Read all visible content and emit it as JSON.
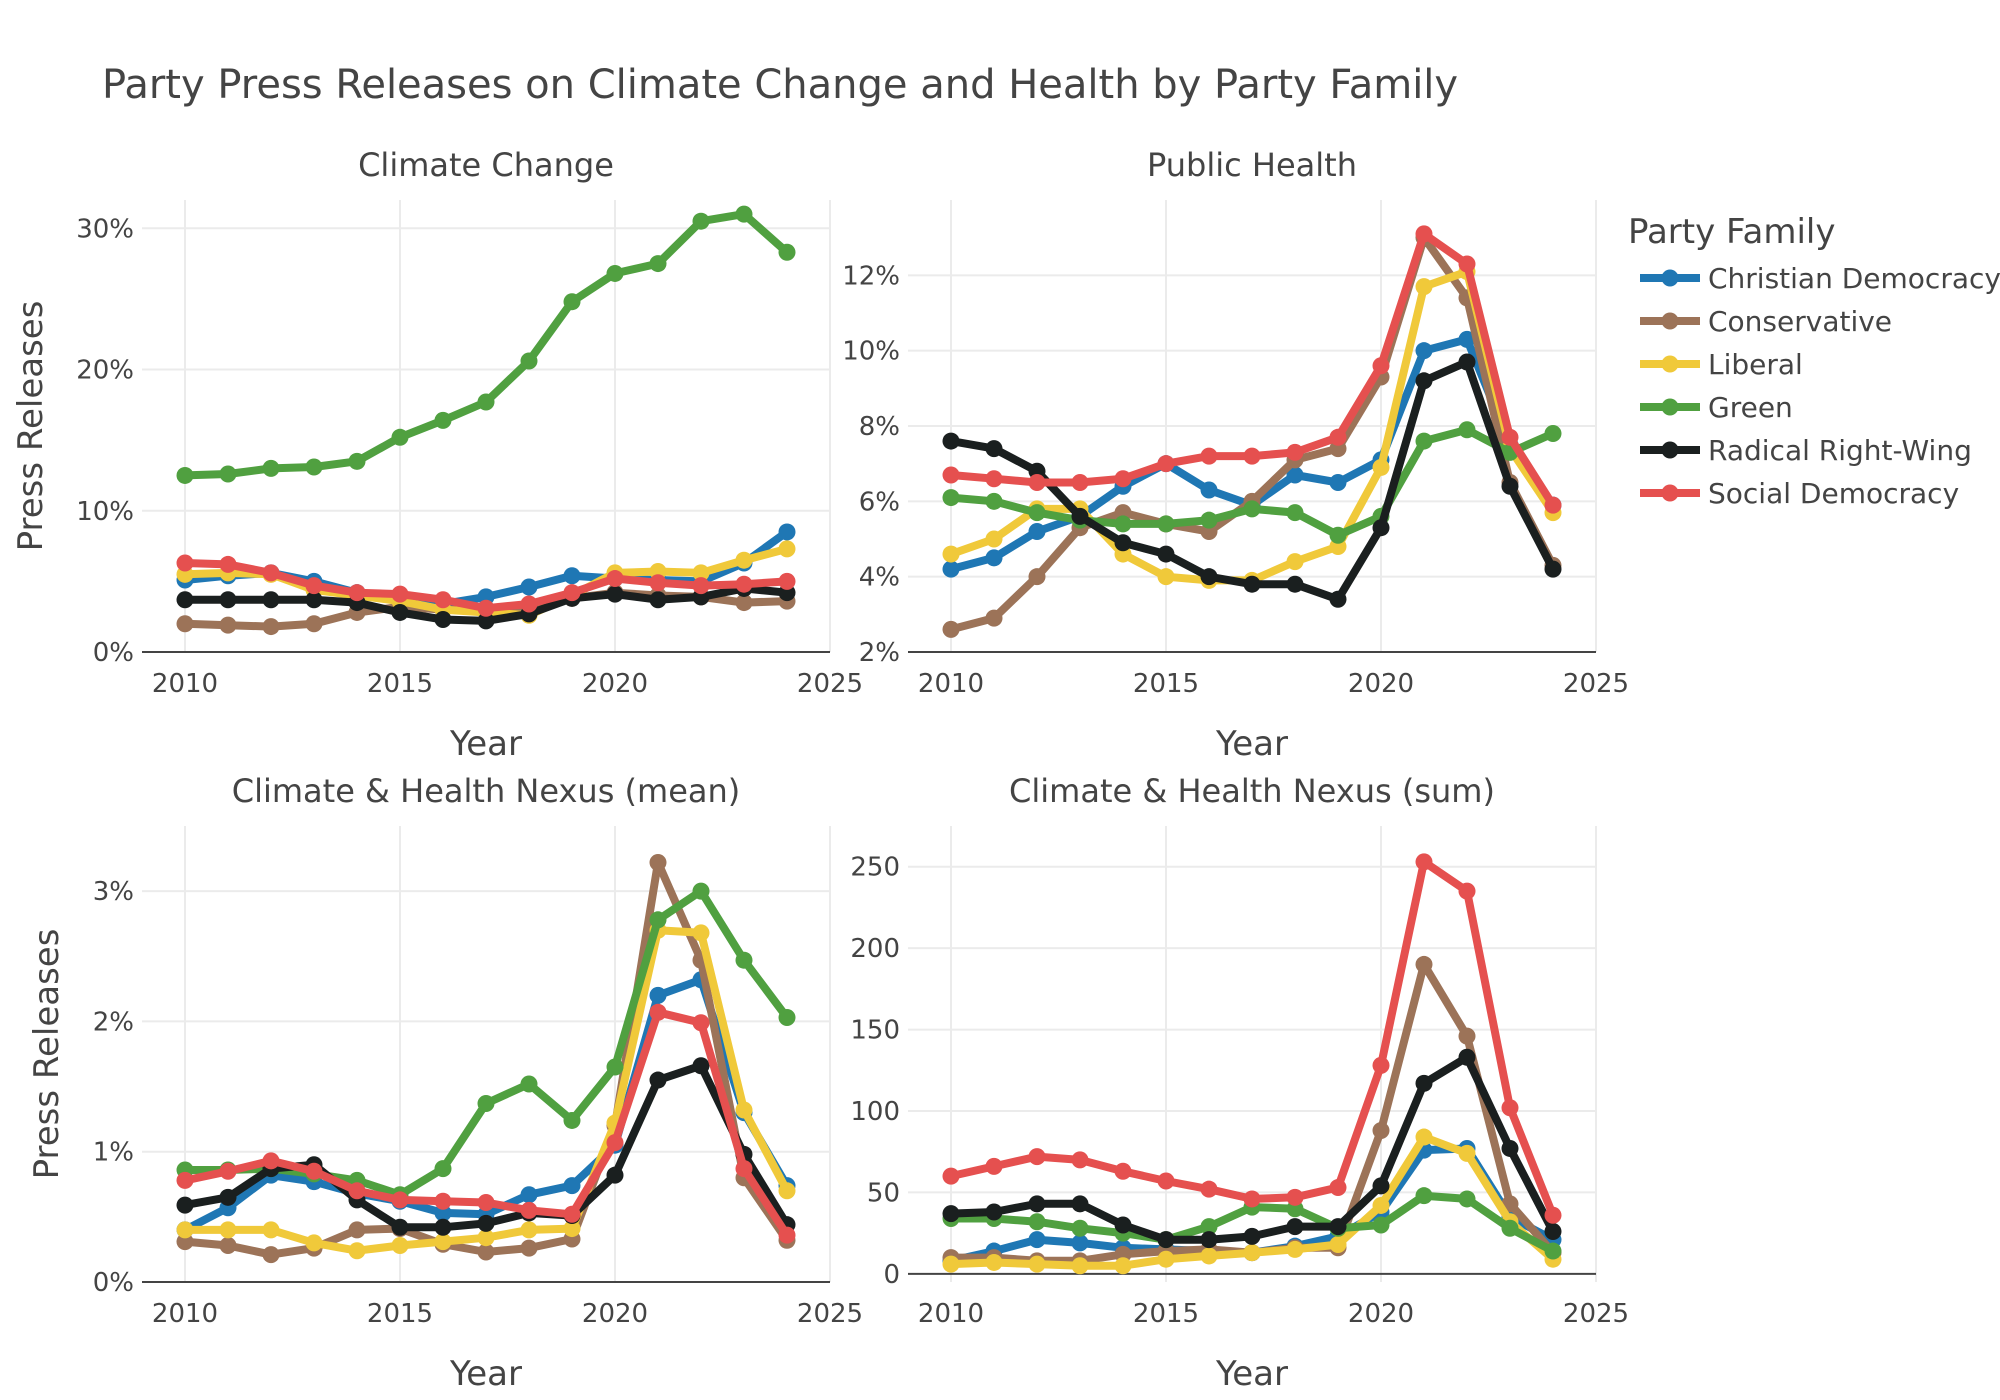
{
  "figure": {
    "title": "Party Press Releases on Climate Change and Health by Party Family",
    "legend_title": "Party Family"
  },
  "style": {
    "background": "#ffffff",
    "grid_color": "#ebebeb",
    "axis_color": "#444444",
    "text_color": "#444444"
  },
  "series_style": [
    {
      "name": "Christian Democracy",
      "color": "#1f77b4"
    },
    {
      "name": "Conservative",
      "color": "#9c7358"
    },
    {
      "name": "Liberal",
      "color": "#f0c93a"
    },
    {
      "name": "Green",
      "color": "#50a040"
    },
    {
      "name": "Radical Right-Wing",
      "color": "#1a1f1f"
    },
    {
      "name": "Social Democracy",
      "color": "#e5504f"
    }
  ],
  "chart_data": [
    {
      "type": "line",
      "title": "Climate Change",
      "xlabel": "Year",
      "ylabel": "Press Releases",
      "xlim": [
        2009,
        2025
      ],
      "ylim": [
        0,
        32
      ],
      "xticks": [
        2010,
        2015,
        2020,
        2025
      ],
      "yticks": [
        0,
        10,
        20,
        30
      ],
      "yticklabels": [
        "0%",
        "10%",
        "20%",
        "30%"
      ],
      "x": [
        2010,
        2011,
        2012,
        2013,
        2014,
        2015,
        2016,
        2017,
        2018,
        2019,
        2020,
        2021,
        2022,
        2023,
        2024
      ],
      "series": [
        {
          "name": "Christian Democracy",
          "values": [
            5.1,
            5.4,
            5.6,
            5.0,
            4.2,
            3.9,
            3.4,
            3.9,
            4.6,
            5.4,
            5.2,
            5.1,
            5.0,
            6.3,
            8.5
          ]
        },
        {
          "name": "Conservative",
          "values": [
            2.0,
            1.9,
            1.8,
            2.0,
            2.8,
            3.2,
            3.0,
            2.9,
            3.0,
            3.8,
            4.2,
            4.0,
            3.9,
            3.5,
            3.6
          ]
        },
        {
          "name": "Liberal",
          "values": [
            5.5,
            5.6,
            5.5,
            4.4,
            4.0,
            3.6,
            3.0,
            2.8,
            2.6,
            4.0,
            5.6,
            5.7,
            5.6,
            6.5,
            7.3
          ]
        },
        {
          "name": "Green",
          "values": [
            12.5,
            12.6,
            13.0,
            13.1,
            13.5,
            15.2,
            16.4,
            17.7,
            20.6,
            24.8,
            26.8,
            27.5,
            30.5,
            31.0,
            28.3
          ]
        },
        {
          "name": "Radical Right-Wing",
          "values": [
            3.7,
            3.7,
            3.7,
            3.7,
            3.5,
            2.8,
            2.3,
            2.2,
            2.7,
            3.8,
            4.1,
            3.7,
            3.9,
            4.5,
            4.2
          ]
        },
        {
          "name": "Social Democracy",
          "values": [
            6.3,
            6.2,
            5.6,
            4.7,
            4.2,
            4.1,
            3.7,
            3.1,
            3.4,
            4.2,
            5.2,
            4.9,
            4.7,
            4.8,
            5.0
          ]
        }
      ]
    },
    {
      "type": "line",
      "title": "Public Health",
      "xlabel": "Year",
      "ylabel": "",
      "xlim": [
        2009,
        2025
      ],
      "ylim": [
        2,
        14
      ],
      "xticks": [
        2010,
        2015,
        2020,
        2025
      ],
      "yticks": [
        2,
        4,
        6,
        8,
        10,
        12
      ],
      "yticklabels": [
        "2%",
        "4%",
        "6%",
        "8%",
        "10%",
        "12%"
      ],
      "x": [
        2010,
        2011,
        2012,
        2013,
        2014,
        2015,
        2016,
        2017,
        2018,
        2019,
        2020,
        2021,
        2022,
        2023,
        2024
      ],
      "series": [
        {
          "name": "Christian Democracy",
          "values": [
            4.2,
            4.5,
            5.2,
            5.6,
            6.4,
            7.0,
            6.3,
            5.9,
            6.7,
            6.5,
            7.1,
            10.0,
            10.3,
            7.5,
            5.9
          ]
        },
        {
          "name": "Conservative",
          "values": [
            2.6,
            2.9,
            4.0,
            5.3,
            5.7,
            5.4,
            5.2,
            6.0,
            7.1,
            7.4,
            9.3,
            13.0,
            11.4,
            6.5,
            4.3
          ]
        },
        {
          "name": "Liberal",
          "values": [
            4.6,
            5.0,
            5.8,
            5.8,
            4.6,
            4.0,
            3.9,
            3.9,
            4.4,
            4.8,
            6.9,
            11.7,
            12.1,
            7.4,
            5.7
          ]
        },
        {
          "name": "Green",
          "values": [
            6.1,
            6.0,
            5.7,
            5.5,
            5.4,
            5.4,
            5.5,
            5.8,
            5.7,
            5.1,
            5.6,
            7.6,
            7.9,
            7.3,
            7.8
          ]
        },
        {
          "name": "Radical Right-Wing",
          "values": [
            7.6,
            7.4,
            6.8,
            5.6,
            4.9,
            4.6,
            4.0,
            3.8,
            3.8,
            3.4,
            5.3,
            9.2,
            9.7,
            6.4,
            4.2
          ]
        },
        {
          "name": "Social Democracy",
          "values": [
            6.7,
            6.6,
            6.5,
            6.5,
            6.6,
            7.0,
            7.2,
            7.2,
            7.3,
            7.7,
            9.6,
            13.1,
            12.3,
            7.7,
            5.9
          ]
        }
      ]
    },
    {
      "type": "line",
      "title": "Climate & Health Nexus (mean)",
      "xlabel": "Year",
      "ylabel": "Press Releases",
      "xlim": [
        2009,
        2025
      ],
      "ylim": [
        0,
        3.5
      ],
      "xticks": [
        2010,
        2015,
        2020,
        2025
      ],
      "yticks": [
        0,
        1,
        2,
        3
      ],
      "yticklabels": [
        "0%",
        "1%",
        "2%",
        "3%"
      ],
      "x": [
        2010,
        2011,
        2012,
        2013,
        2014,
        2015,
        2016,
        2017,
        2018,
        2019,
        2020,
        2021,
        2022,
        2023,
        2024
      ],
      "series": [
        {
          "name": "Christian Democracy",
          "values": [
            0.4,
            0.57,
            0.82,
            0.77,
            0.68,
            0.62,
            0.53,
            0.52,
            0.67,
            0.74,
            1.05,
            2.2,
            2.32,
            1.3,
            0.74
          ]
        },
        {
          "name": "Conservative",
          "values": [
            0.31,
            0.28,
            0.21,
            0.26,
            0.4,
            0.41,
            0.29,
            0.23,
            0.26,
            0.33,
            1.2,
            3.22,
            2.47,
            0.8,
            0.32
          ]
        },
        {
          "name": "Liberal",
          "values": [
            0.4,
            0.4,
            0.4,
            0.3,
            0.24,
            0.28,
            0.31,
            0.34,
            0.4,
            0.41,
            1.22,
            2.7,
            2.68,
            1.32,
            0.7
          ]
        },
        {
          "name": "Green",
          "values": [
            0.86,
            0.86,
            0.87,
            0.83,
            0.78,
            0.67,
            0.87,
            1.37,
            1.52,
            1.24,
            1.65,
            2.78,
            3.0,
            2.47,
            2.03
          ]
        },
        {
          "name": "Radical Right-Wing",
          "values": [
            0.59,
            0.65,
            0.87,
            0.9,
            0.63,
            0.42,
            0.42,
            0.45,
            0.53,
            0.51,
            0.82,
            1.55,
            1.66,
            0.98,
            0.44
          ]
        },
        {
          "name": "Social Democracy",
          "values": [
            0.78,
            0.85,
            0.93,
            0.85,
            0.7,
            0.63,
            0.62,
            0.61,
            0.55,
            0.52,
            1.07,
            2.07,
            1.99,
            0.87,
            0.36
          ]
        }
      ]
    },
    {
      "type": "line",
      "title": "Climate & Health Nexus (sum)",
      "xlabel": "Year",
      "ylabel": "",
      "xlim": [
        2009,
        2025
      ],
      "ylim": [
        -5,
        275
      ],
      "xticks": [
        2010,
        2015,
        2020,
        2025
      ],
      "yticks": [
        0,
        50,
        100,
        150,
        200,
        250
      ],
      "yticklabels": [
        "0",
        "50",
        "100",
        "150",
        "200",
        "250"
      ],
      "x": [
        2010,
        2011,
        2012,
        2013,
        2014,
        2015,
        2016,
        2017,
        2018,
        2019,
        2020,
        2021,
        2022,
        2023,
        2024
      ],
      "series": [
        {
          "name": "Christian Democracy",
          "values": [
            8,
            14,
            21,
            19,
            16,
            15,
            14,
            13,
            17,
            23,
            38,
            76,
            77,
            35,
            21
          ]
        },
        {
          "name": "Conservative",
          "values": [
            10,
            10,
            8,
            8,
            12,
            14,
            15,
            13,
            16,
            16,
            88,
            190,
            146,
            43,
            13
          ]
        },
        {
          "name": "Liberal",
          "values": [
            6,
            7,
            6,
            5,
            5,
            9,
            11,
            13,
            15,
            18,
            42,
            84,
            74,
            32,
            9
          ]
        },
        {
          "name": "Green",
          "values": [
            34,
            34,
            32,
            28,
            25,
            21,
            29,
            41,
            40,
            28,
            30,
            48,
            46,
            28,
            14
          ]
        },
        {
          "name": "Radical Right-Wing",
          "values": [
            37,
            38,
            43,
            43,
            30,
            21,
            21,
            23,
            29,
            29,
            54,
            117,
            133,
            77,
            26
          ]
        },
        {
          "name": "Social Democracy",
          "values": [
            60,
            66,
            72,
            70,
            63,
            57,
            52,
            46,
            47,
            53,
            128,
            253,
            235,
            102,
            36
          ]
        }
      ]
    }
  ]
}
